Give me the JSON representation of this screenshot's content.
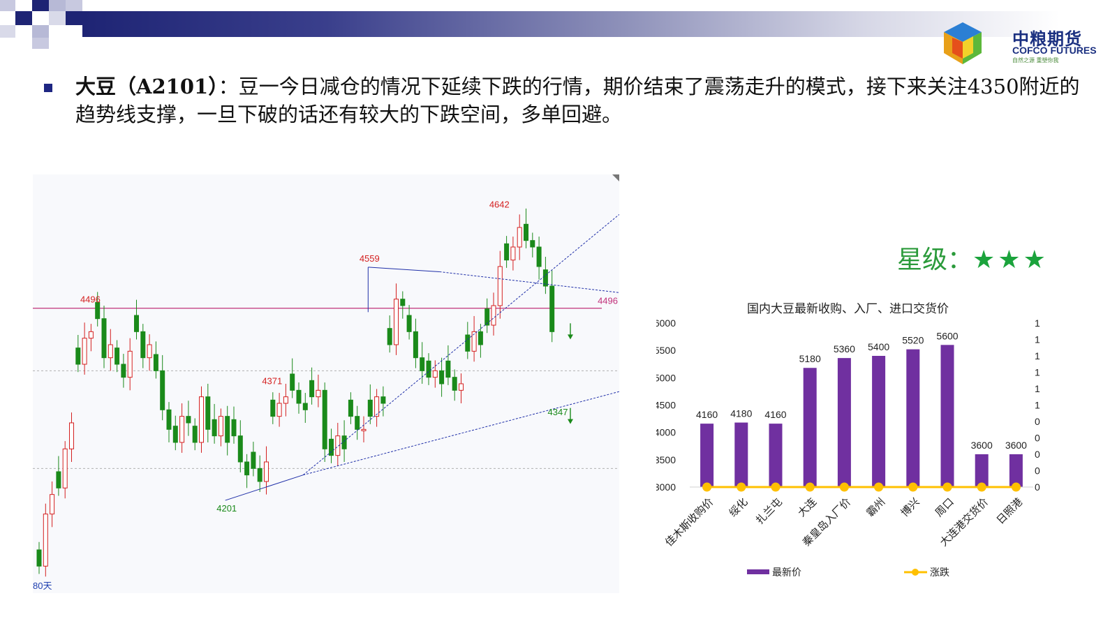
{
  "brand": {
    "name_cn": "中粮期货",
    "name_en": "COFCO FUTURES",
    "slogan": "自然之源 重塑你我"
  },
  "analysis": {
    "label": "大豆（A2101）",
    "text": "：豆一今日减仓的情况下延续下跌的行情，期价结束了震荡走升的模式，接下来关注4350附近的趋势线支撑，一旦下破的话还有较大的下跌空间，多单回避。"
  },
  "rating": {
    "label": "星级：",
    "stars": "★★★"
  },
  "colors": {
    "up": "#d41f1f",
    "down": "#1a8a1a",
    "bar": "#7030a0",
    "line": "#ffc000",
    "trend": "#1f2fa8",
    "hline": "#c0307a"
  },
  "chart_data": [
    {
      "type": "candlestick",
      "period_label": "80天",
      "hline": {
        "value": 4496,
        "label": "4496"
      },
      "annotations": [
        {
          "label": "4496",
          "value": 4496
        },
        {
          "label": "4371",
          "value": 4371
        },
        {
          "label": "4201",
          "value": 4201
        },
        {
          "label": "4559",
          "value": 4559
        },
        {
          "label": "4642",
          "value": 4642
        },
        {
          "label": "4347",
          "value": 4347
        }
      ],
      "close": [
        4100,
        4180,
        4210,
        4220,
        4280,
        4320,
        4410,
        4450,
        4460,
        4480,
        4420,
        4440,
        4410,
        4390,
        4430,
        4460,
        4420,
        4440,
        4400,
        4340,
        4310,
        4290,
        4330,
        4320,
        4290,
        4360,
        4310,
        4300,
        4330,
        4290,
        4300,
        4260,
        4240,
        4250,
        4230,
        4260,
        4330,
        4350,
        4360,
        4370,
        4350,
        4340,
        4360,
        4370,
        4280,
        4270,
        4300,
        4280,
        4330,
        4310,
        4310,
        4330,
        4360,
        4350,
        4440,
        4510,
        4500,
        4460,
        4420,
        4400,
        4390,
        4400,
        4380,
        4390,
        4370,
        4380,
        4430,
        4460,
        4440,
        4470,
        4500,
        4560,
        4570,
        4590,
        4620,
        4600,
        4590,
        4560,
        4530,
        4460
      ]
    },
    {
      "type": "bar",
      "title": "国内大豆最新收购、入厂、进口交货价",
      "categories": [
        "佳木斯收购价",
        "绥化",
        "扎兰屯",
        "大连",
        "秦皇岛入厂价",
        "霸州",
        "博兴",
        "周口",
        "大连港交货价",
        "日照港"
      ],
      "series": [
        {
          "name": "最新价",
          "values": [
            4160,
            4180,
            4160,
            5180,
            5360,
            5400,
            5520,
            5600,
            3600,
            3600
          ]
        },
        {
          "name": "涨跌",
          "values": [
            0,
            0,
            0,
            0,
            0,
            0,
            0,
            0,
            0,
            0
          ]
        }
      ],
      "ylim": [
        3000,
        6000
      ],
      "yticks": [
        "6000",
        "5500",
        "5000",
        "4500",
        "4000",
        "3500",
        "3000"
      ],
      "y2ticks": [
        "1",
        "1",
        "1",
        "1",
        "1",
        "1",
        "0",
        "0",
        "0",
        "0",
        "0"
      ]
    }
  ]
}
